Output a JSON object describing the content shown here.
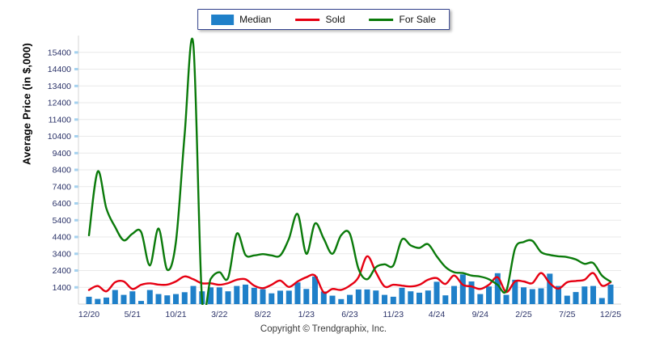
{
  "page": {
    "background": "#ffffff"
  },
  "legend": {
    "items": [
      {
        "label": "Median",
        "swatch": "bar-swatch",
        "color": "#1f80c9"
      },
      {
        "label": "Sold",
        "swatch": "line-swatch",
        "color": "#e60012"
      },
      {
        "label": "For Sale",
        "swatch": "line-swatch",
        "color": "#0a7a0a"
      }
    ],
    "border_color": "#32418c"
  },
  "axes": {
    "y_title": "Average Price (in $,000)",
    "tick_label_color": "#2a3268",
    "gridline_color": "#e9e9e9",
    "axis_line_color": "#d5d5d5",
    "y_tick_stub_color": "#a5d2f0"
  },
  "footer": {
    "copyright": "Copyright © Trendgraphix, Inc."
  },
  "chart_data": {
    "type": "combo",
    "title": "",
    "xlabel": "",
    "ylabel": "Average Price (in $,000)",
    "ylim": [
      400,
      16400
    ],
    "y_ticks": [
      1400,
      2400,
      3400,
      4400,
      5400,
      6400,
      7400,
      8400,
      9400,
      10400,
      11400,
      12400,
      13400,
      14400,
      15400
    ],
    "x_tick_labels": [
      "12/20",
      "5/21",
      "10/21",
      "3/22",
      "8/22",
      "1/23",
      "6/23",
      "11/23",
      "4/24",
      "9/24",
      "2/25",
      "7/25",
      "12/25"
    ],
    "x_tick_positions": [
      0,
      5,
      10,
      15,
      20,
      25,
      30,
      35,
      40,
      45,
      50,
      55,
      60
    ],
    "grid": "horizontal",
    "legend_position": "top-center",
    "smoothing": true,
    "categories": [
      "12/20",
      "1/21",
      "2/21",
      "3/21",
      "4/21",
      "5/21",
      "6/21",
      "7/21",
      "8/21",
      "9/21",
      "10/21",
      "11/21",
      "12/21",
      "1/22",
      "2/22",
      "3/22",
      "4/22",
      "5/22",
      "6/22",
      "7/22",
      "8/22",
      "9/22",
      "10/22",
      "11/22",
      "12/22",
      "1/23",
      "2/23",
      "3/23",
      "4/23",
      "5/23",
      "6/23",
      "7/23",
      "8/23",
      "9/23",
      "10/23",
      "11/23",
      "12/23",
      "1/24",
      "2/24",
      "3/24",
      "4/24",
      "5/24",
      "6/24",
      "7/24",
      "8/24",
      "9/24",
      "10/24",
      "11/24",
      "12/24",
      "1/25",
      "2/25",
      "3/25",
      "4/25",
      "5/25",
      "6/25",
      "7/25",
      "8/25",
      "9/25",
      "10/25",
      "11/25",
      "12/25"
    ],
    "series": [
      {
        "name": "Median",
        "type": "bar",
        "color": "#1f80c9",
        "values": [
          840,
          710,
          790,
          1240,
          950,
          1160,
          590,
          1240,
          1000,
          920,
          1000,
          1110,
          1480,
          1160,
          1400,
          1400,
          1160,
          1480,
          1560,
          1370,
          1280,
          1040,
          1200,
          1200,
          1690,
          1300,
          2050,
          1150,
          900,
          700,
          950,
          1270,
          1270,
          1210,
          950,
          840,
          1370,
          1160,
          1080,
          1210,
          1730,
          920,
          1480,
          2170,
          1750,
          1000,
          1450,
          2240,
          950,
          1850,
          1400,
          1290,
          1340,
          2210,
          1480,
          900,
          1120,
          1450,
          1480,
          760,
          1560
        ]
      },
      {
        "name": "Sold",
        "type": "line",
        "color": "#e60012",
        "values": [
          1240,
          1480,
          1160,
          1700,
          1750,
          1300,
          1550,
          1640,
          1560,
          1560,
          1750,
          2050,
          1880,
          1640,
          1640,
          1550,
          1650,
          1850,
          1880,
          1500,
          1350,
          1550,
          1800,
          1420,
          1750,
          2000,
          2100,
          1100,
          1300,
          1250,
          1500,
          2000,
          3250,
          2300,
          1450,
          1550,
          1500,
          1450,
          1550,
          1850,
          1950,
          1600,
          2100,
          1550,
          1450,
          1300,
          1550,
          2000,
          1120,
          1750,
          1750,
          1650,
          2250,
          1650,
          1320,
          1700,
          1780,
          1850,
          2250,
          1500,
          1700
        ]
      },
      {
        "name": "For Sale",
        "type": "line",
        "color": "#0a7a0a",
        "values": [
          4500,
          8300,
          6100,
          5000,
          4200,
          4600,
          4700,
          2700,
          4900,
          2450,
          4100,
          10500,
          15900,
          700,
          1900,
          2300,
          1950,
          4600,
          3330,
          3300,
          3380,
          3300,
          3300,
          4300,
          5770,
          3400,
          5200,
          4300,
          3400,
          4500,
          4600,
          2500,
          1880,
          2600,
          2770,
          2700,
          4250,
          3900,
          3750,
          3970,
          3250,
          2610,
          2300,
          2250,
          2100,
          2040,
          1880,
          1550,
          1190,
          3700,
          4100,
          4170,
          3500,
          3330,
          3250,
          3200,
          3060,
          2800,
          2850,
          2100,
          1740
        ]
      }
    ]
  }
}
